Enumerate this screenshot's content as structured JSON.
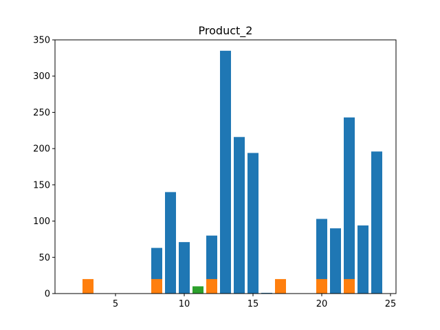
{
  "chart_data": {
    "type": "bar",
    "title": "Product_2",
    "xlabel": "",
    "ylabel": "",
    "xlim": [
      0.6,
      25.4
    ],
    "ylim": [
      0,
      350
    ],
    "xticks": [
      5,
      10,
      15,
      20,
      25
    ],
    "yticks": [
      0,
      50,
      100,
      150,
      200,
      250,
      300,
      350
    ],
    "grid": false,
    "legend": "none",
    "bar_width": 0.8,
    "series": [
      {
        "color": "#1f77b4",
        "points": [
          {
            "x": 8,
            "y": 63
          },
          {
            "x": 9,
            "y": 140
          },
          {
            "x": 10,
            "y": 71
          },
          {
            "x": 12,
            "y": 80
          },
          {
            "x": 13,
            "y": 335
          },
          {
            "x": 14,
            "y": 216
          },
          {
            "x": 15,
            "y": 194
          },
          {
            "x": 16,
            "y": 1
          },
          {
            "x": 20,
            "y": 103
          },
          {
            "x": 21,
            "y": 90
          },
          {
            "x": 22,
            "y": 243
          },
          {
            "x": 23,
            "y": 94
          },
          {
            "x": 24,
            "y": 196
          }
        ]
      },
      {
        "color": "#ff7f0e",
        "points": [
          {
            "x": 3,
            "y": 20
          },
          {
            "x": 8,
            "y": 20
          },
          {
            "x": 12,
            "y": 20
          },
          {
            "x": 17,
            "y": 20
          },
          {
            "x": 20,
            "y": 20
          },
          {
            "x": 22,
            "y": 20
          }
        ]
      },
      {
        "color": "#2ca02c",
        "points": [
          {
            "x": 11,
            "y": 10
          }
        ]
      }
    ]
  }
}
